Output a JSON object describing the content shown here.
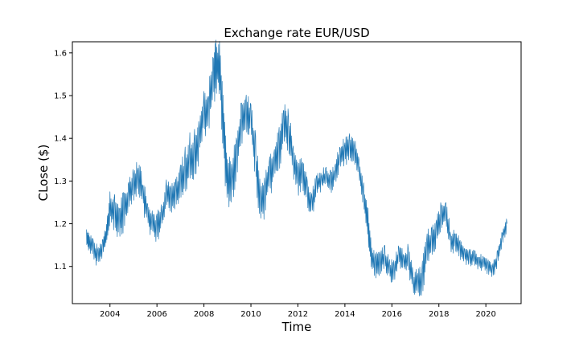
{
  "chart_data": {
    "type": "line",
    "title": "Exchange rate EUR/USD",
    "xlabel": "Time",
    "ylabel": "CLose ($)",
    "xlim": [
      2002.4,
      2021.5
    ],
    "ylim": [
      1.013,
      1.626
    ],
    "x_ticks": [
      2004,
      2006,
      2008,
      2010,
      2012,
      2014,
      2016,
      2018,
      2020
    ],
    "x_tick_labels": [
      "2004",
      "2006",
      "2008",
      "2010",
      "2012",
      "2014",
      "2016",
      "2018",
      "2020"
    ],
    "y_ticks": [
      1.1,
      1.2,
      1.3,
      1.4,
      1.5,
      1.6
    ],
    "y_tick_labels": [
      "1.1",
      "1.2",
      "1.3",
      "1.4",
      "1.5",
      "1.6"
    ],
    "grid": false,
    "series": [
      {
        "color": "#1f77b4",
        "x": [
          2003.0,
          2003.1,
          2003.3,
          2003.5,
          2003.7,
          2003.85,
          2004.0,
          2004.2,
          2004.4,
          2004.6,
          2004.8,
          2005.0,
          2005.2,
          2005.4,
          2005.6,
          2005.8,
          2006.0,
          2006.2,
          2006.4,
          2006.6,
          2006.8,
          2007.0,
          2007.2,
          2007.4,
          2007.6,
          2007.8,
          2008.0,
          2008.2,
          2008.4,
          2008.55,
          2008.7,
          2008.85,
          2009.0,
          2009.2,
          2009.4,
          2009.6,
          2009.8,
          2010.0,
          2010.2,
          2010.4,
          2010.6,
          2010.8,
          2011.0,
          2011.2,
          2011.4,
          2011.6,
          2011.8,
          2012.0,
          2012.2,
          2012.4,
          2012.6,
          2012.8,
          2013.0,
          2013.2,
          2013.4,
          2013.6,
          2013.8,
          2014.0,
          2014.2,
          2014.4,
          2014.6,
          2014.8,
          2014.95,
          2015.1,
          2015.3,
          2015.5,
          2015.7,
          2015.9,
          2016.1,
          2016.3,
          2016.5,
          2016.7,
          2016.9,
          2017.1,
          2017.3,
          2017.5,
          2017.7,
          2017.9,
          2018.1,
          2018.3,
          2018.5,
          2018.7,
          2018.9,
          2019.1,
          2019.3,
          2019.5,
          2019.7,
          2019.9,
          2020.1,
          2020.3,
          2020.5,
          2020.7,
          2020.9
        ],
        "y": [
          1.17,
          1.16,
          1.14,
          1.12,
          1.15,
          1.17,
          1.24,
          1.22,
          1.21,
          1.23,
          1.26,
          1.29,
          1.31,
          1.27,
          1.22,
          1.2,
          1.19,
          1.21,
          1.27,
          1.26,
          1.27,
          1.3,
          1.32,
          1.35,
          1.36,
          1.4,
          1.46,
          1.47,
          1.54,
          1.57,
          1.55,
          1.4,
          1.3,
          1.3,
          1.37,
          1.43,
          1.46,
          1.44,
          1.35,
          1.24,
          1.27,
          1.32,
          1.34,
          1.37,
          1.43,
          1.42,
          1.35,
          1.3,
          1.32,
          1.27,
          1.24,
          1.29,
          1.3,
          1.31,
          1.3,
          1.32,
          1.36,
          1.37,
          1.38,
          1.37,
          1.33,
          1.26,
          1.22,
          1.13,
          1.1,
          1.11,
          1.12,
          1.09,
          1.09,
          1.13,
          1.11,
          1.12,
          1.06,
          1.06,
          1.07,
          1.14,
          1.16,
          1.18,
          1.22,
          1.23,
          1.16,
          1.16,
          1.14,
          1.13,
          1.12,
          1.12,
          1.11,
          1.11,
          1.1,
          1.09,
          1.12,
          1.17,
          1.2
        ],
        "spread": [
          0.05,
          0.05,
          0.06,
          0.05,
          0.05,
          0.06,
          0.09,
          0.1,
          0.1,
          0.1,
          0.09,
          0.08,
          0.09,
          0.09,
          0.08,
          0.08,
          0.08,
          0.08,
          0.07,
          0.07,
          0.07,
          0.09,
          0.12,
          0.13,
          0.13,
          0.12,
          0.12,
          0.13,
          0.14,
          0.14,
          0.15,
          0.16,
          0.14,
          0.13,
          0.12,
          0.12,
          0.12,
          0.12,
          0.12,
          0.11,
          0.11,
          0.11,
          0.12,
          0.12,
          0.11,
          0.12,
          0.1,
          0.09,
          0.08,
          0.08,
          0.08,
          0.06,
          0.05,
          0.06,
          0.06,
          0.06,
          0.06,
          0.07,
          0.07,
          0.06,
          0.08,
          0.09,
          0.09,
          0.08,
          0.07,
          0.06,
          0.06,
          0.06,
          0.06,
          0.06,
          0.06,
          0.07,
          0.07,
          0.07,
          0.09,
          0.1,
          0.08,
          0.08,
          0.07,
          0.06,
          0.06,
          0.06,
          0.06,
          0.05,
          0.04,
          0.04,
          0.04,
          0.04,
          0.04,
          0.04,
          0.04,
          0.04,
          0.04
        ]
      }
    ]
  }
}
